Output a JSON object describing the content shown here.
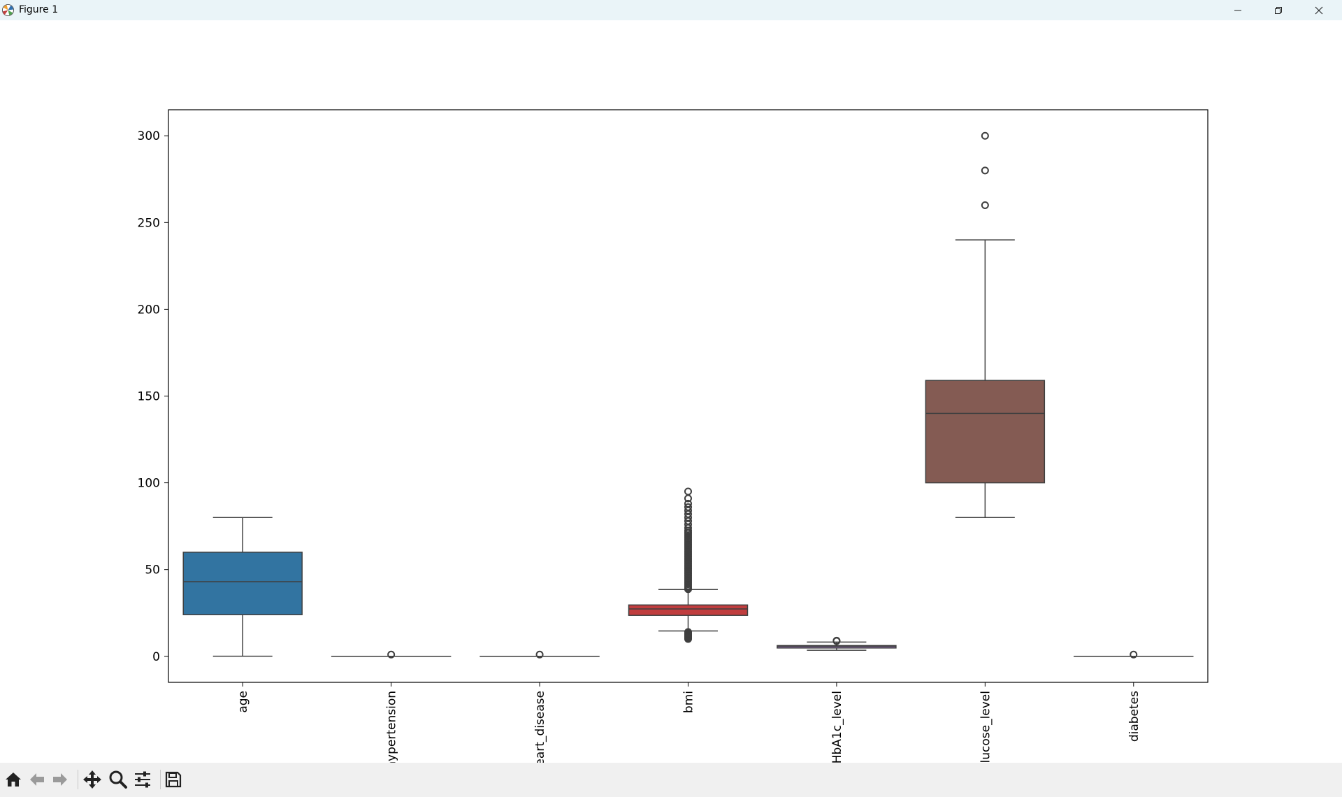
{
  "window": {
    "title": "Figure 1"
  },
  "toolbar": {
    "buttons": [
      {
        "name": "home-icon"
      },
      {
        "name": "back-arrow-icon"
      },
      {
        "name": "forward-arrow-icon"
      },
      {
        "name": "pan-icon"
      },
      {
        "name": "zoom-icon"
      },
      {
        "name": "configure-subplots-icon"
      },
      {
        "name": "save-icon"
      }
    ]
  },
  "chart_data": {
    "type": "box",
    "title": "",
    "xlabel": "",
    "ylabel": "",
    "ylim": [
      -15,
      315
    ],
    "yticks": [
      0,
      50,
      100,
      150,
      200,
      250,
      300
    ],
    "grid": false,
    "categories": [
      "age",
      "hypertension",
      "heart_disease",
      "bmi",
      "HbA1c_level",
      "blood_glucose_level",
      "diabetes"
    ],
    "boxes": [
      {
        "name": "age",
        "color": "#3274a1",
        "q1": 24,
        "median": 43,
        "q3": 60,
        "whisker_low": 0.08,
        "whisker_high": 80,
        "outliers": []
      },
      {
        "name": "hypertension",
        "color": "#e1812c",
        "q1": 0,
        "median": 0,
        "q3": 0,
        "whisker_low": 0,
        "whisker_high": 0,
        "outliers": [
          1
        ]
      },
      {
        "name": "heart_disease",
        "color": "#3a923a",
        "q1": 0,
        "median": 0,
        "q3": 0,
        "whisker_low": 0,
        "whisker_high": 0,
        "outliers": [
          1
        ]
      },
      {
        "name": "bmi",
        "color": "#c03d3e",
        "q1": 23.6,
        "median": 27.3,
        "q3": 29.6,
        "whisker_low": 14.6,
        "whisker_high": 38.5,
        "outliers": [
          10,
          10.5,
          11,
          11.5,
          12,
          12.5,
          13,
          13.5,
          14,
          38.7,
          39.5,
          40.5,
          41.5,
          42.5,
          43.5,
          44.5,
          45.5,
          46.5,
          47.5,
          48.5,
          49.5,
          50.5,
          51.5,
          52.5,
          53.5,
          54.5,
          55.5,
          56.5,
          57.5,
          58.5,
          59.5,
          60.5,
          61.5,
          62.5,
          63.5,
          64.5,
          65.5,
          66.5,
          67.5,
          68.5,
          69.5,
          70.5,
          71.5,
          72.5,
          74,
          76,
          78,
          80,
          82,
          84,
          86,
          88,
          91,
          95
        ]
      },
      {
        "name": "HbA1c_level",
        "color": "#9372b2",
        "q1": 4.8,
        "median": 5.8,
        "q3": 6.2,
        "whisker_low": 3.5,
        "whisker_high": 8.2,
        "outliers": [
          8.8,
          9.0
        ]
      },
      {
        "name": "blood_glucose_level",
        "color": "#845b53",
        "q1": 100,
        "median": 140,
        "q3": 159,
        "whisker_low": 80,
        "whisker_high": 240,
        "outliers": [
          260,
          280,
          300
        ]
      },
      {
        "name": "diabetes",
        "color": "#d684bd",
        "q1": 0,
        "median": 0,
        "q3": 0,
        "whisker_low": 0,
        "whisker_high": 0,
        "outliers": [
          1
        ]
      }
    ]
  }
}
